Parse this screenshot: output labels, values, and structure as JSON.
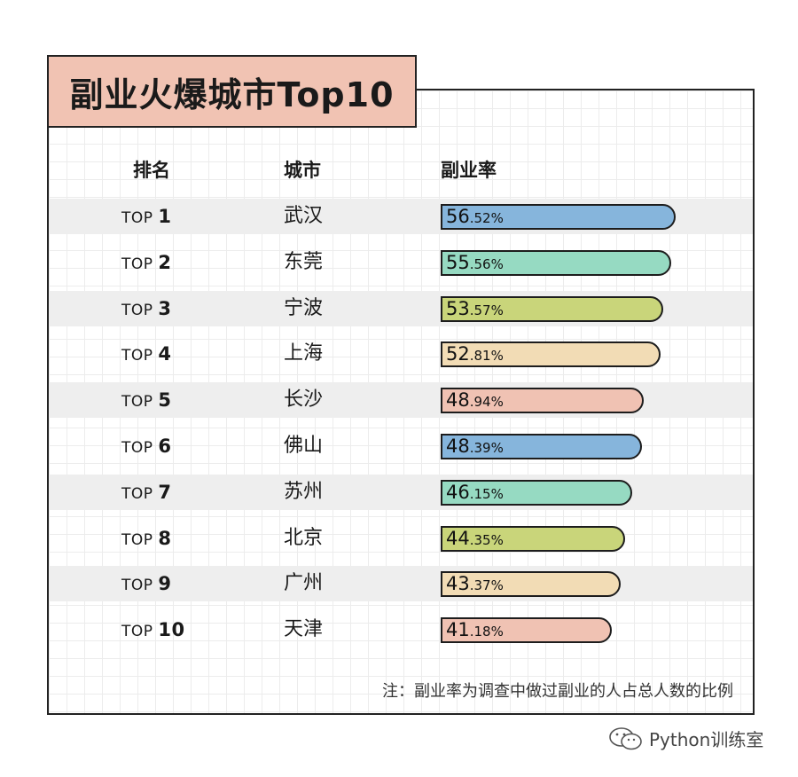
{
  "title": "副业火爆城市Top10",
  "headers": {
    "rank": "排名",
    "city": "城市",
    "rate": "副业率"
  },
  "chart_data": {
    "type": "bar",
    "categories": [
      "武汉",
      "东莞",
      "宁波",
      "上海",
      "长沙",
      "佛山",
      "苏州",
      "北京",
      "广州",
      "天津"
    ],
    "rank_prefix": "TOP",
    "ranks": [
      "1",
      "2",
      "3",
      "4",
      "5",
      "6",
      "7",
      "8",
      "9",
      "10"
    ],
    "value_labels": [
      {
        "int": "56",
        "dec": ".52%"
      },
      {
        "int": "55",
        "dec": ".56%"
      },
      {
        "int": "53",
        "dec": ".57%"
      },
      {
        "int": "52",
        "dec": ".81%"
      },
      {
        "int": "48",
        "dec": ".94%"
      },
      {
        "int": "48",
        "dec": ".39%"
      },
      {
        "int": "46",
        "dec": ".15%"
      },
      {
        "int": "44",
        "dec": ".35%"
      },
      {
        "int": "43",
        "dec": ".37%"
      },
      {
        "int": "41",
        "dec": ".18%"
      }
    ],
    "values": [
      56.52,
      55.56,
      53.57,
      52.81,
      48.94,
      48.39,
      46.15,
      44.35,
      43.37,
      41.18
    ],
    "bar_colors": [
      "#86b5dc",
      "#96dac2",
      "#c9d57a",
      "#f2dcb5",
      "#f0c2b3",
      "#86b5dc",
      "#96dac2",
      "#c9d57a",
      "#f2dcb5",
      "#f0c2b3"
    ],
    "row_shading": "alternating gray"
  },
  "note": "注：副业率为调查中做过副业的人占总人数的比例",
  "footer": {
    "brand": "Python训练室",
    "icon": "wechat-icon"
  },
  "colors": {
    "title_bg": "#f1c3b3",
    "row_shade": "#eeeeee"
  }
}
